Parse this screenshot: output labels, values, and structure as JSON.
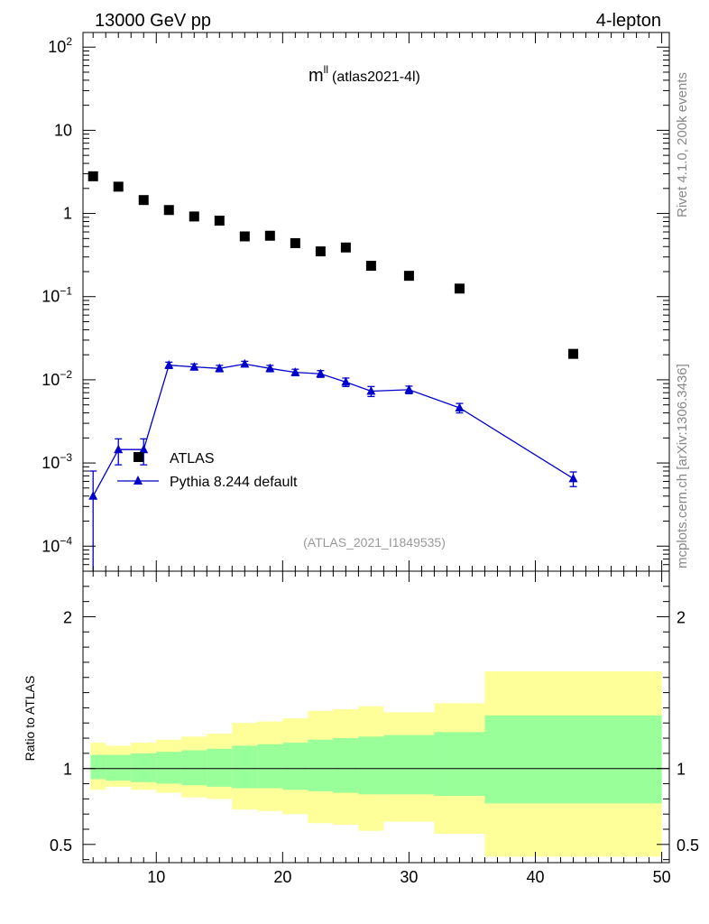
{
  "header": {
    "left": "13000 GeV pp",
    "right": "4-lepton"
  },
  "side_labels": {
    "rivet": "Rivet 4.1.0,  200k events",
    "mcplots": "mcplots.cern.ch [arXiv:1306.3436]"
  },
  "colors": {
    "atlas": "#000000",
    "pythia": "#0000cc",
    "band_green": "#99ff99",
    "band_yellow": "#ffff99"
  },
  "chart_data": {
    "type": "scatter",
    "title_main": "m",
    "title_sup": "ll",
    "title_sub": "(atlas2021-4l)",
    "analysis_id": "(ATLAS_2021_I1849535)",
    "ylabel_ratio": "Ratio to ATLAS",
    "xlim": [
      4.2,
      50.6
    ],
    "ylim_log": [
      5e-05,
      150
    ],
    "ratio_ylim": [
      0.38,
      2.3
    ],
    "x_ticks": [
      10,
      20,
      30,
      40,
      50
    ],
    "y_ticks_main": [
      {
        "value": 0.0001,
        "base": "10",
        "exp": "−4"
      },
      {
        "value": 0.001,
        "base": "10",
        "exp": "−3"
      },
      {
        "value": 0.01,
        "base": "10",
        "exp": "−2"
      },
      {
        "value": 0.1,
        "base": "10",
        "exp": "−1"
      },
      {
        "value": 1,
        "base": "1",
        "exp": ""
      },
      {
        "value": 10,
        "base": "10",
        "exp": ""
      },
      {
        "value": 100,
        "base": "10",
        "exp": "2"
      }
    ],
    "y_ticks_ratio": [
      {
        "value": 0.5,
        "label": "0.5"
      },
      {
        "value": 1,
        "label": "1"
      },
      {
        "value": 2,
        "label": "2"
      }
    ],
    "legend": [
      {
        "name": "ATLAS",
        "marker": "square"
      },
      {
        "name": "Pythia 8.244 default",
        "marker": "triangle"
      }
    ],
    "series": [
      {
        "name": "ATLAS",
        "x": [
          5,
          7,
          9,
          11,
          13,
          15,
          17,
          19,
          21,
          23,
          25,
          27,
          30,
          34,
          43
        ],
        "y": [
          2.8,
          2.1,
          1.45,
          1.1,
          0.92,
          0.82,
          0.53,
          0.54,
          0.44,
          0.35,
          0.39,
          0.235,
          0.178,
          0.125,
          0.0205
        ]
      },
      {
        "name": "Pythia 8.244 default",
        "x": [
          5,
          7,
          9,
          11,
          13,
          15,
          17,
          19,
          21,
          23,
          25,
          27,
          30,
          34,
          43
        ],
        "y": [
          0.0004,
          0.00145,
          0.00145,
          0.015,
          0.0143,
          0.0137,
          0.0155,
          0.0137,
          0.0123,
          0.0118,
          0.0094,
          0.0073,
          0.0076,
          0.0046,
          0.00065
        ],
        "err": [
          0.0004,
          0.0005,
          0.0005,
          0.0013,
          0.0012,
          0.0012,
          0.0012,
          0.0012,
          0.0011,
          0.0011,
          0.0011,
          0.001,
          0.0008,
          0.0006,
          0.00013
        ]
      }
    ],
    "ratio_bands": [
      {
        "lo": 4.8,
        "hi": 6,
        "g": [
          0.93,
          1.09
        ],
        "y": [
          0.86,
          1.17
        ]
      },
      {
        "lo": 6,
        "hi": 8,
        "g": [
          0.92,
          1.09
        ],
        "y": [
          0.88,
          1.15
        ]
      },
      {
        "lo": 8,
        "hi": 10,
        "g": [
          0.91,
          1.1
        ],
        "y": [
          0.86,
          1.17
        ]
      },
      {
        "lo": 10,
        "hi": 12,
        "g": [
          0.9,
          1.11
        ],
        "y": [
          0.84,
          1.19
        ]
      },
      {
        "lo": 12,
        "hi": 14,
        "g": [
          0.89,
          1.12
        ],
        "y": [
          0.81,
          1.21
        ]
      },
      {
        "lo": 14,
        "hi": 16,
        "g": [
          0.88,
          1.13
        ],
        "y": [
          0.8,
          1.23
        ]
      },
      {
        "lo": 16,
        "hi": 18,
        "g": [
          0.87,
          1.15
        ],
        "y": [
          0.73,
          1.3
        ]
      },
      {
        "lo": 18,
        "hi": 20,
        "g": [
          0.87,
          1.16
        ],
        "y": [
          0.72,
          1.31
        ]
      },
      {
        "lo": 20,
        "hi": 22,
        "g": [
          0.86,
          1.17
        ],
        "y": [
          0.7,
          1.33
        ]
      },
      {
        "lo": 22,
        "hi": 24,
        "g": [
          0.85,
          1.19
        ],
        "y": [
          0.64,
          1.38
        ]
      },
      {
        "lo": 24,
        "hi": 26,
        "g": [
          0.84,
          1.2
        ],
        "y": [
          0.63,
          1.39
        ]
      },
      {
        "lo": 26,
        "hi": 28,
        "g": [
          0.83,
          1.21
        ],
        "y": [
          0.59,
          1.41
        ]
      },
      {
        "lo": 28,
        "hi": 32,
        "g": [
          0.83,
          1.22
        ],
        "y": [
          0.65,
          1.37
        ]
      },
      {
        "lo": 32,
        "hi": 36,
        "g": [
          0.82,
          1.24
        ],
        "y": [
          0.57,
          1.43
        ]
      },
      {
        "lo": 36,
        "hi": 50,
        "g": [
          0.77,
          1.35
        ],
        "y": [
          0.42,
          1.64
        ]
      }
    ]
  }
}
